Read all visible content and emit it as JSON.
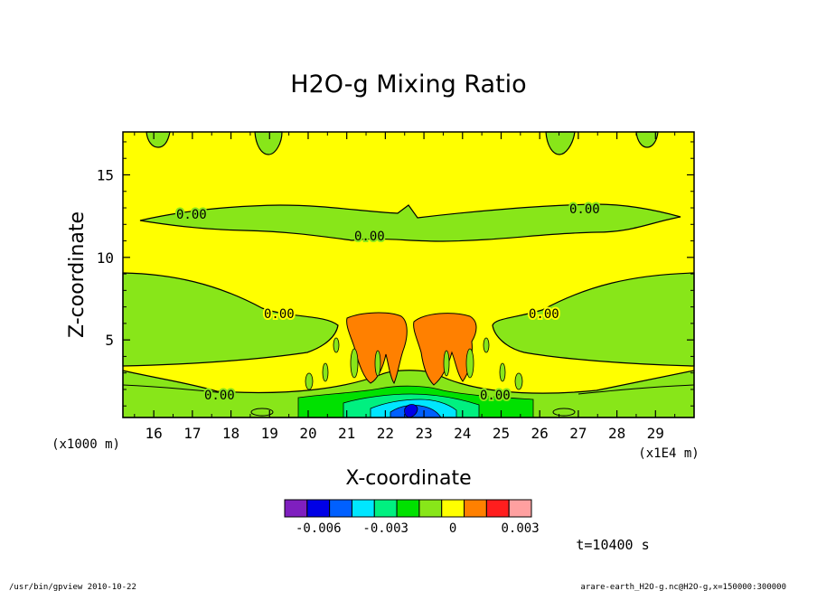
{
  "chart_data": {
    "type": "contour",
    "title": "H2O-g Mixing Ratio",
    "xlabel": "X-coordinate",
    "ylabel": "Z-coordinate",
    "x_scale_label": "(x1E4 m)",
    "y_scale_label": "(x1000 m)",
    "xlim": [
      15.2,
      30.0
    ],
    "ylim": [
      0.3,
      17.6
    ],
    "x_ticks": [
      "16",
      "17",
      "18",
      "19",
      "20",
      "21",
      "22",
      "23",
      "24",
      "25",
      "26",
      "27",
      "28",
      "29"
    ],
    "y_ticks": [
      "5",
      "10",
      "15"
    ],
    "contour_labels": [
      "0.00",
      "0.00",
      "0.00",
      "0.00",
      "0.00",
      "0.00",
      "0.00",
      "0.00"
    ],
    "colorbar": {
      "levels": [
        -0.007,
        -0.006,
        -0.005,
        -0.004,
        -0.003,
        -0.002,
        -0.001,
        0,
        0.001,
        0.002,
        0.003
      ],
      "colors": [
        "#7f1fbf",
        "#0000e6",
        "#0060ff",
        "#00e6ff",
        "#00f080",
        "#00e100",
        "#88e619",
        "#ffff00",
        "#ff8000",
        "#ff1e1e",
        "#ffa0a0"
      ],
      "tick_labels": [
        "-0.006",
        "-0.003",
        "0",
        "0.003"
      ]
    },
    "time_label": "t=10400 s"
  },
  "footer": {
    "left": "/usr/bin/gpview   2010-10-22",
    "right": "arare-earth_H2O-g.nc@H2O-g,x=150000:300000"
  }
}
